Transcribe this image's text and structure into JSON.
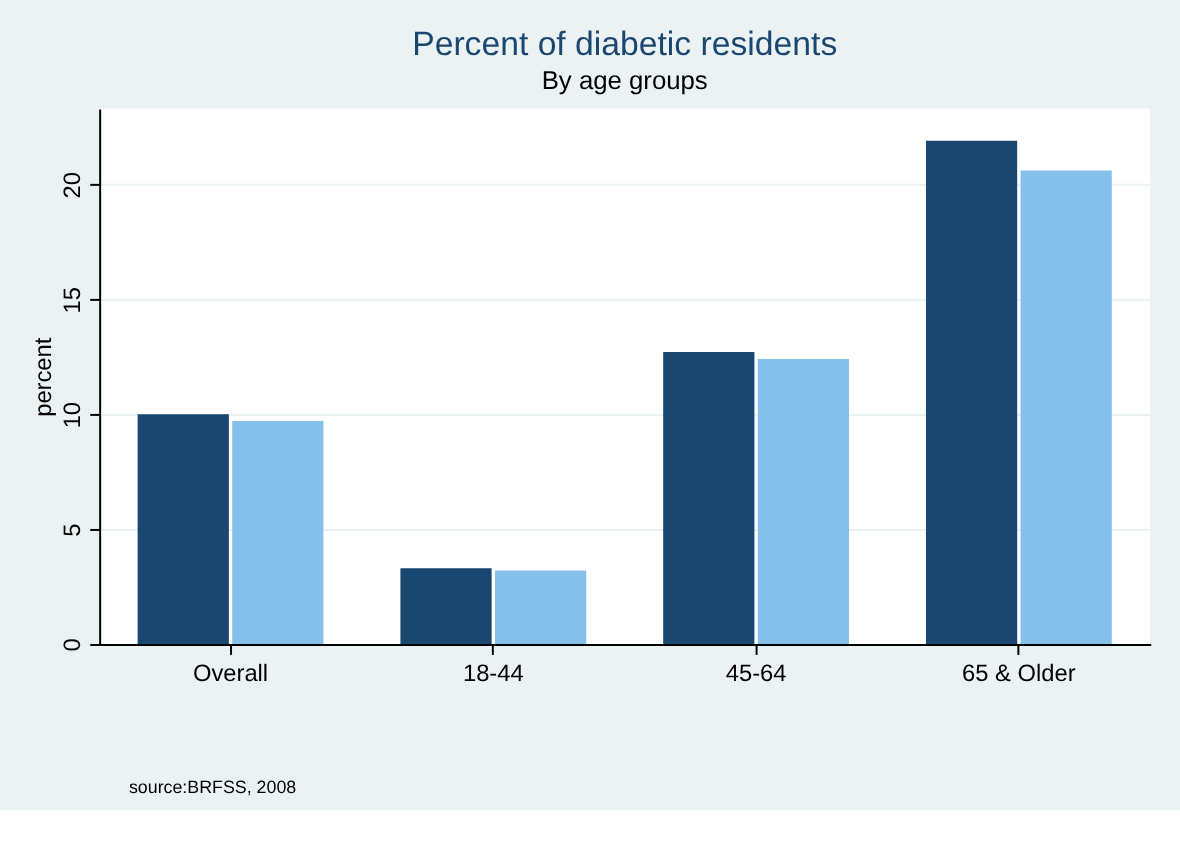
{
  "chart_data": {
    "type": "bar",
    "title": "Percent of diabetic residents",
    "subtitle": "By age groups",
    "ylabel": "percent",
    "categories": [
      "Overall",
      "18-44",
      "45-64",
      "65 & Older"
    ],
    "series": [
      {
        "color": "#1a476f",
        "values": [
          10.0,
          3.3,
          12.7,
          21.9
        ]
      },
      {
        "color": "#84c0ea",
        "values": [
          9.7,
          3.2,
          12.4,
          20.6
        ]
      }
    ],
    "ylim": [
      0,
      23.3
    ],
    "yticks": [
      0,
      5,
      10,
      15,
      20
    ],
    "grid": "y",
    "legend": false,
    "annotations": [
      "source:BRFSS, 2008"
    ]
  }
}
